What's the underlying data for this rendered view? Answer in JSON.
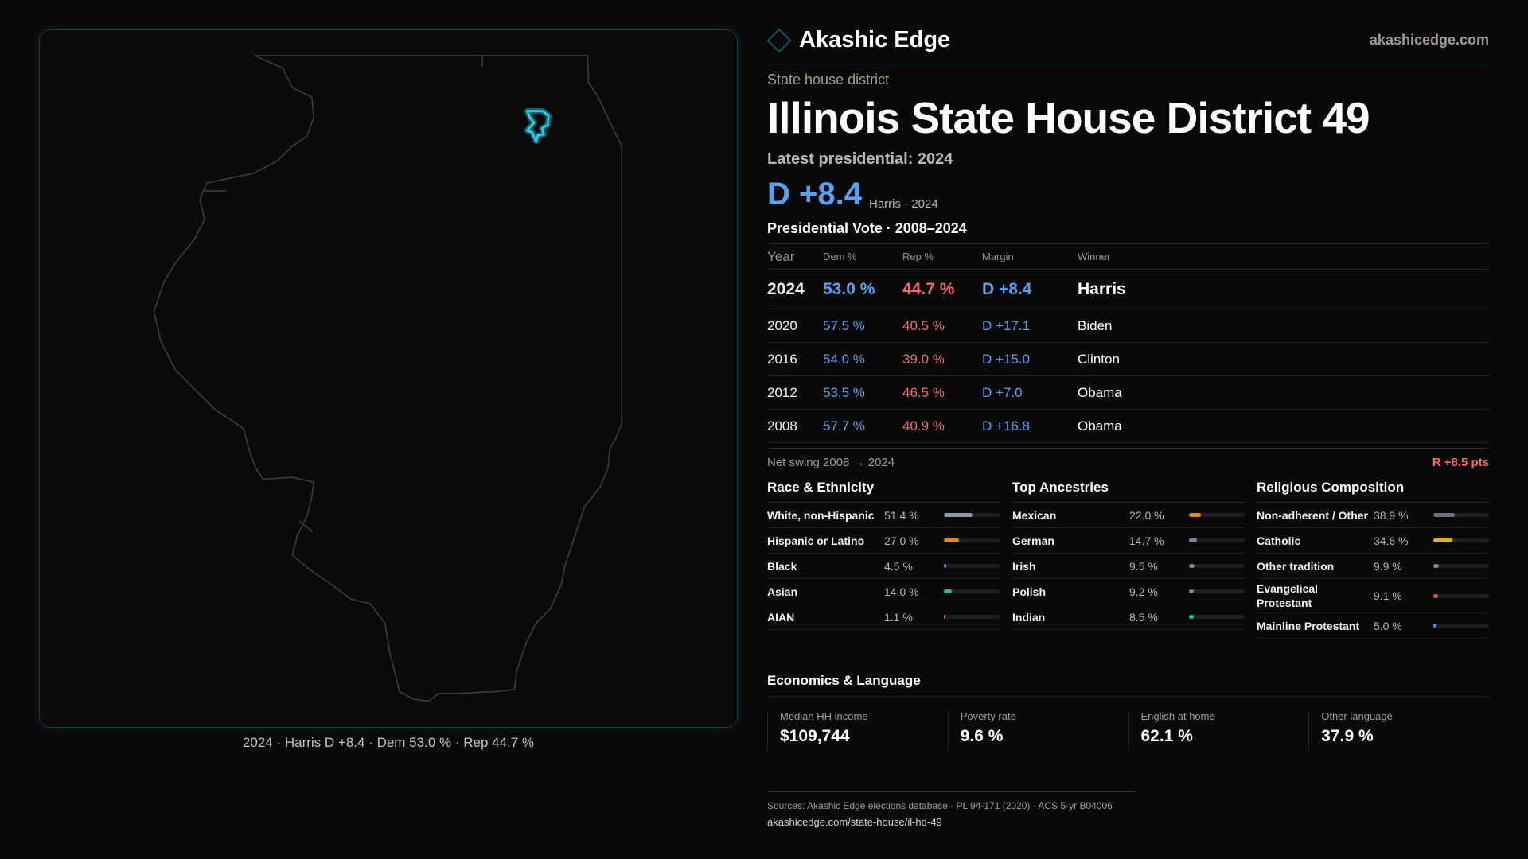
{
  "brand": {
    "name": "Akashic Edge",
    "site": "akashicedge.com",
    "logo_icon": "diamond-outline"
  },
  "kicker": "State house district",
  "title": "Illinois State House District 49",
  "latest_label": "Latest presidential: 2024",
  "headline_margin": "D +8.4",
  "headline_sub": "Harris · 2024",
  "map": {
    "caption": "2024 · Harris D +8.4 · Dem 53.0 % · Rep 44.7 %",
    "highlight_color": "#22d3ee"
  },
  "colors": {
    "dem": "#5aa0f0",
    "rep": "#f06b6b"
  },
  "presidential": {
    "title": "Presidential Vote · 2008–2024",
    "headers": [
      "Year",
      "Dem %",
      "Rep %",
      "Margin",
      "Winner"
    ],
    "rows": [
      [
        "2024",
        "53.0 %",
        "44.7 %",
        "D +8.4",
        "Harris"
      ],
      [
        "2020",
        "57.5 %",
        "40.5 %",
        "D +17.1",
        "Biden"
      ],
      [
        "2016",
        "54.0 %",
        "39.0 %",
        "D +15.0",
        "Clinton"
      ],
      [
        "2012",
        "53.5 %",
        "46.5 %",
        "D +7.0",
        "Obama"
      ],
      [
        "2008",
        "57.7 %",
        "40.9 %",
        "D +16.8",
        "Obama"
      ]
    ]
  },
  "swing": {
    "label": "Net swing 2008 → 2024",
    "value": "R +8.5 pts"
  },
  "sections": [
    {
      "title": "Race & Ethnicity",
      "items": [
        {
          "label": "White, non-Hispanic",
          "value": "51.4 %",
          "pct": 51.4,
          "color": "#8c96a8"
        },
        {
          "label": "Hispanic or Latino",
          "value": "27.0 %",
          "pct": 27.0,
          "color": "#d4900f"
        },
        {
          "label": "Black",
          "value": "4.5 %",
          "pct": 4.5,
          "color": "#8a6fd8"
        },
        {
          "label": "Asian",
          "value": "14.0 %",
          "pct": 14.0,
          "color": "#2bbf8a"
        },
        {
          "label": "AIAN",
          "value": "1.1 %",
          "pct": 1.1,
          "color": "#d9771a"
        }
      ]
    },
    {
      "title": "Top Ancestries",
      "items": [
        {
          "label": "Mexican",
          "value": "22.0 %",
          "pct": 22.0,
          "color": "#d4900f"
        },
        {
          "label": "German",
          "value": "14.7 %",
          "pct": 14.7,
          "color": "#7c879a"
        },
        {
          "label": "Irish",
          "value": "9.5 %",
          "pct": 9.5,
          "color": "#7c879a"
        },
        {
          "label": "Polish",
          "value": "9.2 %",
          "pct": 9.2,
          "color": "#7c879a"
        },
        {
          "label": "Indian",
          "value": "8.5 %",
          "pct": 8.5,
          "color": "#2bbf8a"
        }
      ]
    },
    {
      "title": "Religious Composition",
      "items": [
        {
          "label": "Non-adherent / Other",
          "value": "38.9 %",
          "pct": 38.9,
          "color": "#6b7280"
        },
        {
          "label": "Catholic",
          "value": "34.6 %",
          "pct": 34.6,
          "color": "#e0b020"
        },
        {
          "label": "Other tradition",
          "value": "9.9 %",
          "pct": 9.9,
          "color": "#7c879a"
        },
        {
          "label": "Evangelical Protestant",
          "value": "9.1 %",
          "pct": 9.1,
          "color": "#e05555"
        },
        {
          "label": "Mainline Protestant",
          "value": "5.0 %",
          "pct": 5.0,
          "color": "#4a8ce0"
        }
      ]
    }
  ],
  "economics": {
    "title": "Economics & Language",
    "cards": [
      {
        "label": "Median HH income",
        "value": "$109,744"
      },
      {
        "label": "Poverty rate",
        "value": "9.6 %"
      },
      {
        "label": "English at home",
        "value": "62.1 %"
      },
      {
        "label": "Other language",
        "value": "37.9 %"
      }
    ]
  },
  "sources": "Sources: Akashic Edge elections database · PL 94-171 (2020) · ACS 5-yr B04006",
  "url": "akashicedge.com/state-house/il-hd-49"
}
